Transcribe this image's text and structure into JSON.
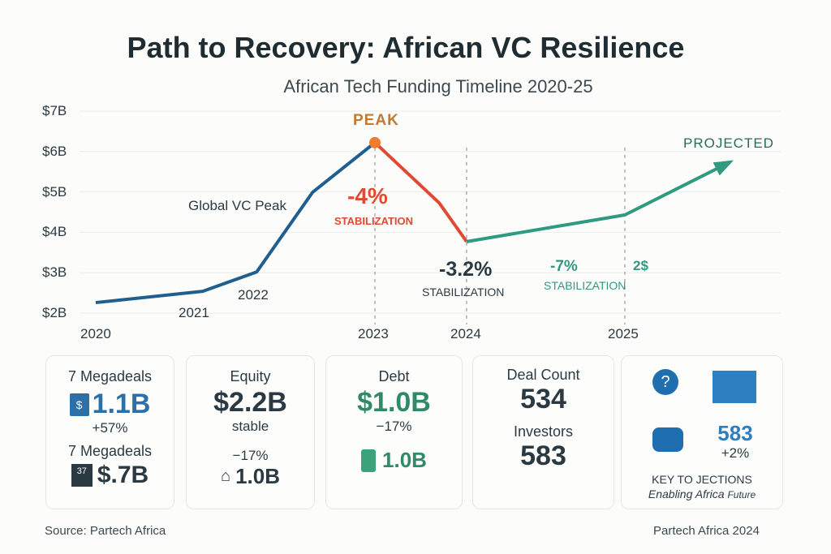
{
  "title": "Path to Recovery: African VC Resilience",
  "subtitle": "African Tech Funding Timeline 2020-25",
  "colors": {
    "rise": "#1f5f8f",
    "decline": "#e04a33",
    "projection": "#2f9a80",
    "peak_marker": "#ef7d2d",
    "peak_label": "#c07a34"
  },
  "chart_data": {
    "type": "line",
    "title": "African Tech Funding Timeline 2020-25",
    "ylabel": "",
    "xlabel": "",
    "ylim": [
      2,
      7
    ],
    "yticks": [
      "$7B",
      "$6B",
      "$5B",
      "$4B",
      "$3B",
      "$2B"
    ],
    "xticks": [
      "2020",
      "2021",
      "2022",
      "2023",
      "2024",
      "2025"
    ],
    "grid": true,
    "series": [
      {
        "segment": "rise",
        "x": [
          2020,
          2021.15,
          2021.73,
          2022.33,
          2023
        ],
        "y": [
          2.26,
          2.54,
          3.02,
          4.99,
          6.22
        ]
      },
      {
        "segment": "decline",
        "x": [
          2023,
          2023.7,
          2024
        ],
        "y": [
          6.22,
          4.73,
          3.77
        ]
      },
      {
        "segment": "projection",
        "x": [
          2024,
          2025,
          2025.66
        ],
        "y": [
          3.77,
          4.43,
          5.73
        ]
      }
    ],
    "annotations": {
      "peak": "PEAK",
      "global_peak": "Global VC Peak",
      "drop_2023": "-4%",
      "drop_2023_label": "STABILIZATION",
      "drop_2024": "-3.2%",
      "drop_2024_label": "STABILIZATION",
      "drop_2025": "-7%",
      "drop_2025_extra": "2$",
      "drop_2025_label": "STABILIZATION",
      "projected": "PROJECTED"
    }
  },
  "cards": {
    "megadeals": {
      "label1": "7 Megadeals",
      "value1": "1.1B",
      "change1": "+57%",
      "label2": "7 Megadeals",
      "icon2_text": "37",
      "value2": "$.7B"
    },
    "equity": {
      "label": "Equity",
      "value": "$2.2B",
      "note": "stable",
      "change": "−17%",
      "value2": "1.0B"
    },
    "debt": {
      "label": "Debt",
      "value": "$1.0B",
      "change": "−17%",
      "value2": "1.0B"
    },
    "deals": {
      "label1": "Deal Count",
      "value1": "534",
      "label2": "Investors",
      "value2": "583"
    },
    "key": {
      "value": "583",
      "change": "+2%",
      "title": "KEY TO JECTIONS",
      "tagline_1": "Enabling",
      "tagline_2": "Africa",
      "tagline_3": "Future"
    }
  },
  "footer": {
    "source": "Source: Partech Africa",
    "credit": "Partech Africa 2024"
  }
}
